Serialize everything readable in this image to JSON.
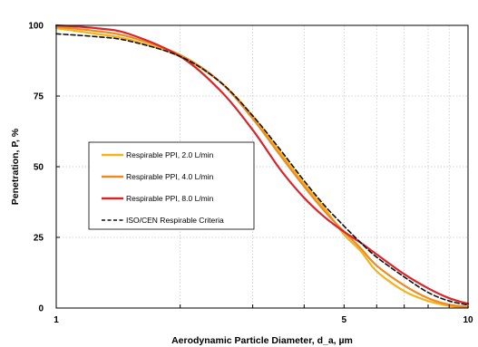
{
  "chart_data": {
    "type": "line",
    "title": "",
    "xlabel": "Aerodynamic Particle Diameter, d_a, µm",
    "ylabel": "Penetration, P, %",
    "xscale": "log",
    "xlim": [
      1,
      10
    ],
    "ylim": [
      0,
      100
    ],
    "xticks": [
      1,
      5,
      10
    ],
    "yticks": [
      0,
      25,
      50,
      75,
      100
    ],
    "grid": true,
    "legend_position": "center-left",
    "series": [
      {
        "name": "Respirable PPI, 2.0 L/min",
        "color": "#F6B21B",
        "dash": "solid",
        "x": [
          1,
          1.25,
          1.5,
          2,
          2.5,
          3,
          3.5,
          4,
          4.5,
          5,
          5.5,
          6,
          7,
          8,
          9,
          10
        ],
        "y": [
          99,
          97,
          95,
          89,
          80,
          68,
          55,
          44,
          35,
          26,
          20,
          13,
          6,
          2.5,
          0.8,
          0.2
        ]
      },
      {
        "name": "Respirable PPI, 4.0 L/min",
        "color": "#EE8A23",
        "dash": "solid",
        "x": [
          1,
          1.25,
          1.5,
          2,
          2.5,
          3,
          3.5,
          4,
          4.5,
          5,
          5.5,
          6,
          7,
          8,
          9,
          10
        ],
        "y": [
          99.5,
          98,
          96,
          89.5,
          80,
          67,
          54,
          43,
          34,
          27,
          21,
          15,
          8,
          3.5,
          1.2,
          0.4
        ]
      },
      {
        "name": "Respirable PPI, 8.0 L/min",
        "color": "#D7262B",
        "dash": "solid",
        "x": [
          1,
          1.25,
          1.5,
          2,
          2.5,
          3,
          3.5,
          4,
          4.5,
          5,
          5.5,
          6,
          7,
          8,
          9,
          10
        ],
        "y": [
          100,
          99,
          97,
          89,
          77,
          63,
          49,
          39,
          32,
          27,
          23,
          19,
          12,
          7,
          3.5,
          1.5
        ]
      },
      {
        "name": "ISO/CEN Respirable Criteria",
        "color": "#111111",
        "dash": "dashed",
        "x": [
          1,
          1.25,
          1.5,
          2,
          2.5,
          3,
          3.5,
          4,
          4.5,
          5,
          5.5,
          6,
          7,
          8,
          9,
          10
        ],
        "y": [
          97,
          96,
          94.5,
          89,
          80,
          68,
          56,
          45,
          36,
          29,
          23,
          18,
          11,
          5.5,
          2.5,
          1.1
        ]
      }
    ]
  }
}
